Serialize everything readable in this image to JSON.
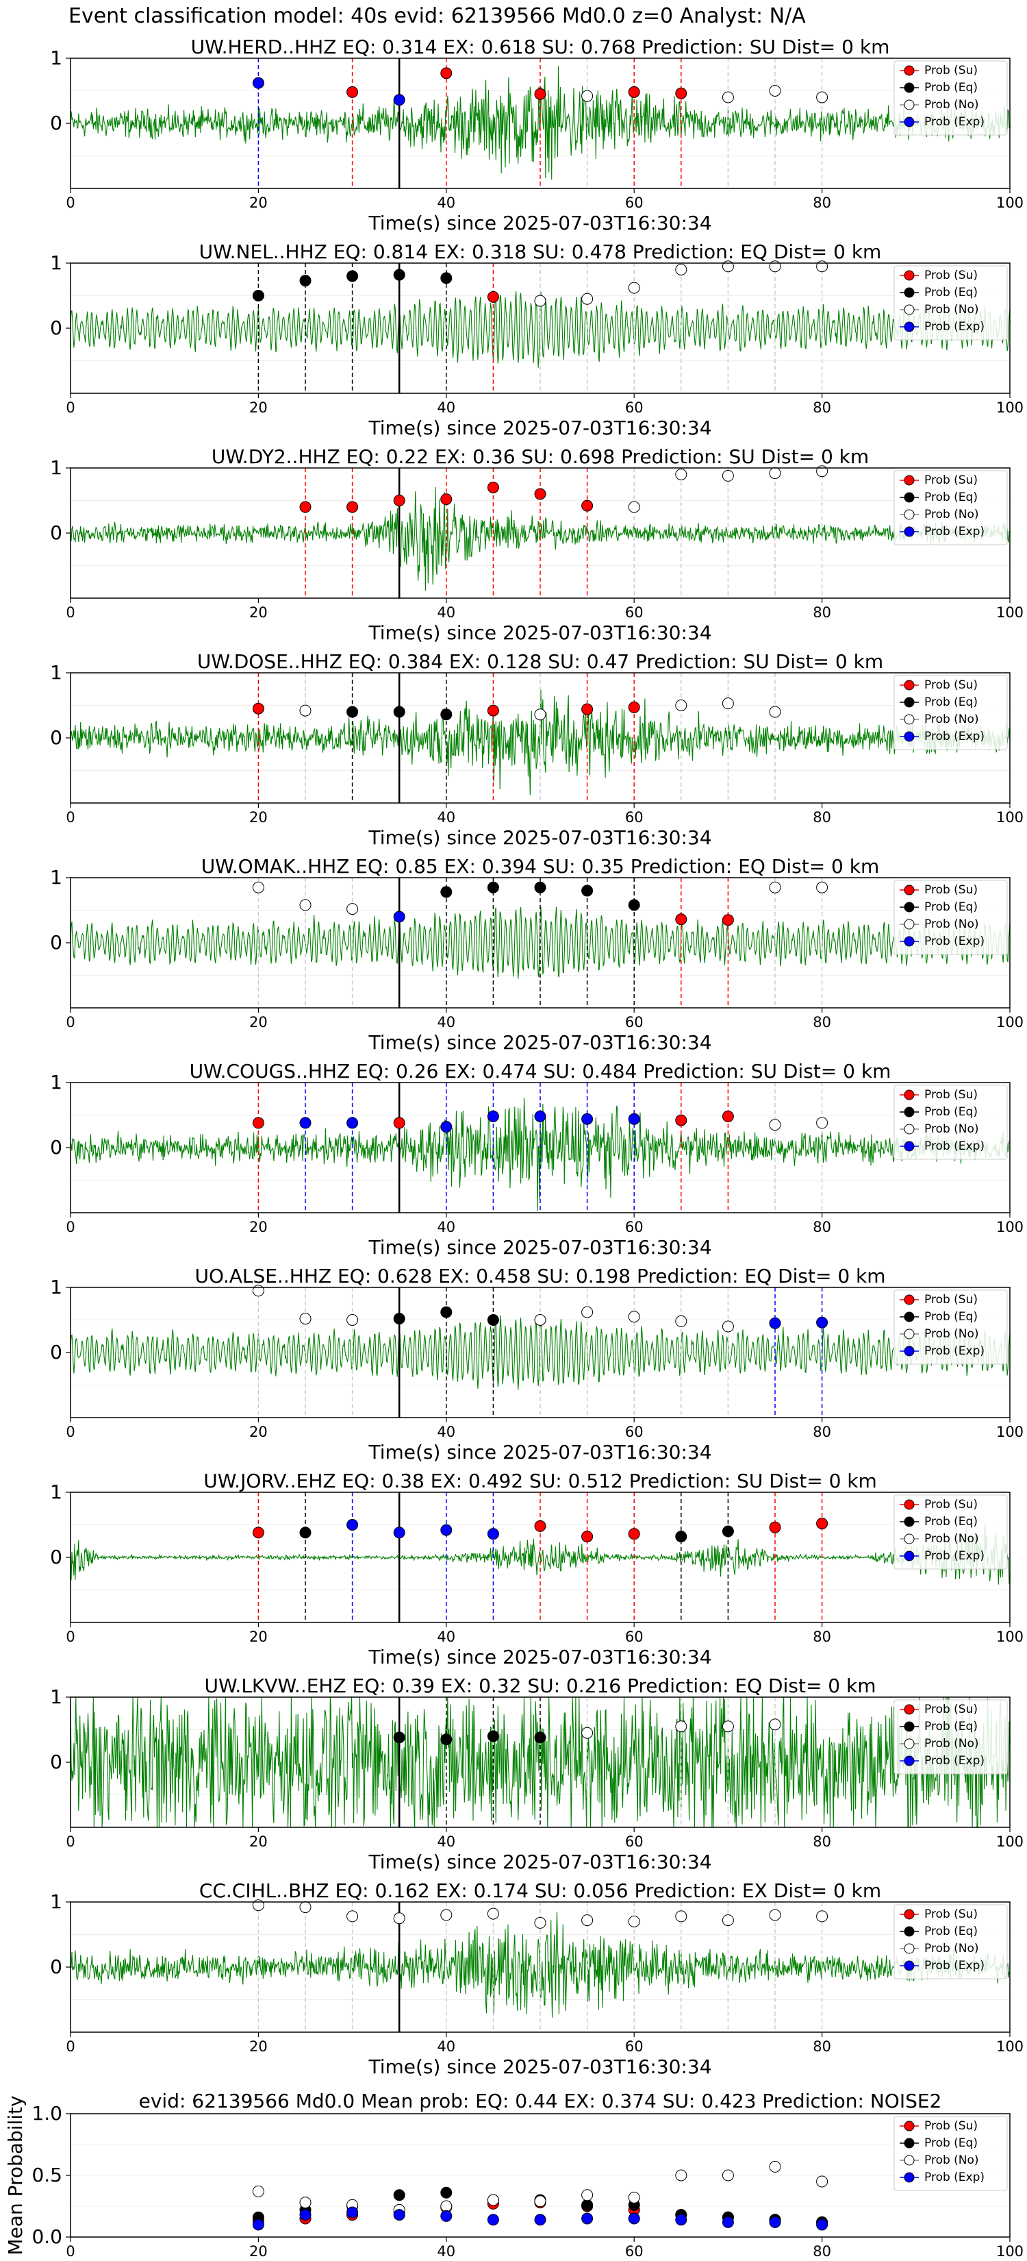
{
  "suptitle": "Event classification model: 40s evid: 62139566 Md0.0 z=0 Analyst: N/A",
  "colors": {
    "su": "#ff0000",
    "eq": "#000000",
    "no": "#ffffff",
    "exp": "#0000ff",
    "trace": "#008000"
  },
  "legend_labels": [
    "Prob (Su)",
    "Prob (Eq)",
    "Prob (No)",
    "Prob (Exp)"
  ],
  "xlabel": "Time(s) since 2025-07-03T16:30:34",
  "origin_time_s": 35,
  "chart_data": [
    {
      "type": "scatter",
      "title": "UW.HERD..HHZ   EQ: 0.314  EX: 0.618  SU: 0.768   Prediction: SU    Dist= 0 km",
      "xlim": [
        0,
        100
      ],
      "ylim": [
        -1,
        1
      ],
      "yticks": [
        0,
        1
      ],
      "xticks": [
        0,
        20,
        40,
        60,
        80,
        100
      ],
      "legend": "top-right",
      "trace": "noisy",
      "points": [
        [
          20,
          "exp",
          0.62
        ],
        [
          30,
          "su",
          0.48
        ],
        [
          35,
          "exp",
          0.36
        ],
        [
          40,
          "su",
          0.77
        ],
        [
          50,
          "su",
          0.45
        ],
        [
          55,
          "no",
          0.42
        ],
        [
          60,
          "su",
          0.48
        ],
        [
          65,
          "su",
          0.46
        ],
        [
          70,
          "no",
          0.4
        ],
        [
          75,
          "no",
          0.5
        ],
        [
          80,
          "no",
          0.4
        ]
      ]
    },
    {
      "type": "scatter",
      "title": "UW.NEL..HHZ   EQ: 0.814  EX: 0.318  SU: 0.478   Prediction: EQ    Dist= 0 km",
      "xlim": [
        0,
        100
      ],
      "ylim": [
        -1,
        1
      ],
      "yticks": [
        0,
        1
      ],
      "xticks": [
        0,
        20,
        40,
        60,
        80,
        100
      ],
      "legend": "top-right",
      "trace": "wavy",
      "points": [
        [
          20,
          "eq",
          0.5
        ],
        [
          25,
          "eq",
          0.73
        ],
        [
          30,
          "eq",
          0.8
        ],
        [
          35,
          "eq",
          0.82
        ],
        [
          40,
          "eq",
          0.77
        ],
        [
          45,
          "su",
          0.48
        ],
        [
          50,
          "no",
          0.42
        ],
        [
          55,
          "no",
          0.45
        ],
        [
          60,
          "no",
          0.62
        ],
        [
          65,
          "no",
          0.9
        ],
        [
          70,
          "no",
          0.95
        ],
        [
          75,
          "no",
          0.95
        ],
        [
          80,
          "no",
          0.95
        ]
      ]
    },
    {
      "type": "scatter",
      "title": "UW.DY2..HHZ   EQ: 0.22  EX: 0.36  SU: 0.698   Prediction: SU    Dist= 0 km",
      "xlim": [
        0,
        100
      ],
      "ylim": [
        -1,
        1
      ],
      "yticks": [
        0,
        1
      ],
      "xticks": [
        0,
        20,
        40,
        60,
        80,
        100
      ],
      "legend": "top-right",
      "trace": "burst",
      "points": [
        [
          25,
          "su",
          0.4
        ],
        [
          30,
          "su",
          0.4
        ],
        [
          35,
          "su",
          0.5
        ],
        [
          40,
          "su",
          0.52
        ],
        [
          45,
          "su",
          0.7
        ],
        [
          50,
          "su",
          0.6
        ],
        [
          55,
          "su",
          0.42
        ],
        [
          60,
          "no",
          0.4
        ],
        [
          65,
          "no",
          0.9
        ],
        [
          70,
          "no",
          0.88
        ],
        [
          75,
          "no",
          0.92
        ],
        [
          80,
          "no",
          0.95
        ]
      ]
    },
    {
      "type": "scatter",
      "title": "UW.DOSE..HHZ   EQ: 0.384  EX: 0.128  SU: 0.47   Prediction: SU    Dist= 0 km",
      "xlim": [
        0,
        100
      ],
      "ylim": [
        -1,
        1
      ],
      "yticks": [
        0,
        1
      ],
      "xticks": [
        0,
        20,
        40,
        60,
        80,
        100
      ],
      "legend": "top-right",
      "trace": "noisy",
      "points": [
        [
          20,
          "su",
          0.45
        ],
        [
          25,
          "no",
          0.42
        ],
        [
          30,
          "eq",
          0.4
        ],
        [
          35,
          "eq",
          0.4
        ],
        [
          40,
          "eq",
          0.36
        ],
        [
          45,
          "su",
          0.42
        ],
        [
          50,
          "no",
          0.36
        ],
        [
          55,
          "su",
          0.44
        ],
        [
          60,
          "su",
          0.47
        ],
        [
          65,
          "no",
          0.5
        ],
        [
          70,
          "no",
          0.53
        ],
        [
          75,
          "no",
          0.4
        ]
      ]
    },
    {
      "type": "scatter",
      "title": "UW.OMAK..HHZ   EQ: 0.85  EX: 0.394  SU: 0.35   Prediction: EQ    Dist= 0 km",
      "xlim": [
        0,
        100
      ],
      "ylim": [
        -1,
        1
      ],
      "yticks": [
        0,
        1
      ],
      "xticks": [
        0,
        20,
        40,
        60,
        80,
        100
      ],
      "legend": "top-right",
      "trace": "wavy",
      "points": [
        [
          20,
          "no",
          0.85
        ],
        [
          25,
          "no",
          0.58
        ],
        [
          30,
          "no",
          0.52
        ],
        [
          35,
          "exp",
          0.4
        ],
        [
          40,
          "eq",
          0.78
        ],
        [
          45,
          "eq",
          0.85
        ],
        [
          50,
          "eq",
          0.85
        ],
        [
          55,
          "eq",
          0.8
        ],
        [
          60,
          "eq",
          0.58
        ],
        [
          65,
          "su",
          0.36
        ],
        [
          70,
          "su",
          0.35
        ],
        [
          75,
          "no",
          0.85
        ],
        [
          80,
          "no",
          0.85
        ]
      ]
    },
    {
      "type": "scatter",
      "title": "UW.COUGS..HHZ   EQ: 0.26  EX: 0.474  SU: 0.484   Prediction: SU    Dist= 0 km",
      "xlim": [
        0,
        100
      ],
      "ylim": [
        -1,
        1
      ],
      "yticks": [
        0,
        1
      ],
      "xticks": [
        0,
        20,
        40,
        60,
        80,
        100
      ],
      "legend": "top-right",
      "trace": "noisy",
      "points": [
        [
          20,
          "su",
          0.38
        ],
        [
          25,
          "exp",
          0.38
        ],
        [
          30,
          "exp",
          0.38
        ],
        [
          35,
          "su",
          0.38
        ],
        [
          40,
          "exp",
          0.32
        ],
        [
          45,
          "exp",
          0.48
        ],
        [
          50,
          "exp",
          0.48
        ],
        [
          55,
          "exp",
          0.44
        ],
        [
          60,
          "exp",
          0.44
        ],
        [
          65,
          "su",
          0.42
        ],
        [
          70,
          "su",
          0.48
        ],
        [
          75,
          "no",
          0.35
        ],
        [
          80,
          "no",
          0.38
        ]
      ]
    },
    {
      "type": "scatter",
      "title": "UO.ALSE..HHZ   EQ: 0.628  EX: 0.458  SU: 0.198   Prediction: EQ    Dist= 0 km",
      "xlim": [
        0,
        100
      ],
      "ylim": [
        -1,
        1
      ],
      "yticks": [
        0,
        1
      ],
      "xticks": [
        0,
        20,
        40,
        60,
        80,
        100
      ],
      "legend": "top-right",
      "trace": "wavy",
      "points": [
        [
          20,
          "no",
          0.95
        ],
        [
          25,
          "no",
          0.52
        ],
        [
          30,
          "no",
          0.5
        ],
        [
          35,
          "eq",
          0.52
        ],
        [
          40,
          "eq",
          0.62
        ],
        [
          45,
          "eq",
          0.5
        ],
        [
          50,
          "no",
          0.5
        ],
        [
          55,
          "no",
          0.62
        ],
        [
          60,
          "no",
          0.55
        ],
        [
          65,
          "no",
          0.48
        ],
        [
          70,
          "no",
          0.4
        ],
        [
          75,
          "exp",
          0.45
        ],
        [
          80,
          "exp",
          0.46
        ]
      ]
    },
    {
      "type": "scatter",
      "title": "UW.JORV..EHZ   EQ: 0.38  EX: 0.492  SU: 0.512   Prediction: SU    Dist= 0 km",
      "xlim": [
        0,
        100
      ],
      "ylim": [
        -1,
        1
      ],
      "yticks": [
        0,
        1
      ],
      "xticks": [
        0,
        20,
        40,
        60,
        80,
        100
      ],
      "legend": "top-right",
      "trace": "quiet",
      "points": [
        [
          20,
          "su",
          0.38
        ],
        [
          25,
          "eq",
          0.38
        ],
        [
          30,
          "exp",
          0.5
        ],
        [
          35,
          "exp",
          0.38
        ],
        [
          40,
          "exp",
          0.42
        ],
        [
          45,
          "exp",
          0.36
        ],
        [
          50,
          "su",
          0.48
        ],
        [
          55,
          "su",
          0.32
        ],
        [
          60,
          "su",
          0.36
        ],
        [
          65,
          "eq",
          0.32
        ],
        [
          70,
          "eq",
          0.4
        ],
        [
          75,
          "su",
          0.46
        ],
        [
          80,
          "su",
          0.52
        ]
      ]
    },
    {
      "type": "scatter",
      "title": "UW.LKVW..EHZ   EQ: 0.39  EX: 0.32  SU: 0.216   Prediction: EQ    Dist= 0 km",
      "xlim": [
        0,
        100
      ],
      "ylim": [
        -1,
        1
      ],
      "yticks": [
        0,
        1
      ],
      "xticks": [
        0,
        20,
        40,
        60,
        80,
        100
      ],
      "legend": "top-right",
      "trace": "saturated",
      "points": [
        [
          35,
          "eq",
          0.38
        ],
        [
          40,
          "eq",
          0.35
        ],
        [
          45,
          "eq",
          0.4
        ],
        [
          50,
          "eq",
          0.38
        ],
        [
          55,
          "no",
          0.45
        ],
        [
          65,
          "no",
          0.55
        ],
        [
          70,
          "no",
          0.55
        ],
        [
          75,
          "no",
          0.58
        ]
      ]
    },
    {
      "type": "scatter",
      "title": "CC.CIHL..BHZ   EQ: 0.162  EX: 0.174  SU: 0.056   Prediction: EX    Dist= 0 km",
      "xlim": [
        0,
        100
      ],
      "ylim": [
        -1,
        1
      ],
      "yticks": [
        0,
        1
      ],
      "xticks": [
        0,
        20,
        40,
        60,
        80,
        100
      ],
      "legend": "top-right",
      "trace": "noisy",
      "points": [
        [
          20,
          "no",
          0.95
        ],
        [
          25,
          "no",
          0.92
        ],
        [
          30,
          "no",
          0.78
        ],
        [
          35,
          "no",
          0.75
        ],
        [
          40,
          "no",
          0.8
        ],
        [
          45,
          "no",
          0.82
        ],
        [
          50,
          "no",
          0.68
        ],
        [
          55,
          "no",
          0.72
        ],
        [
          60,
          "no",
          0.7
        ],
        [
          65,
          "no",
          0.78
        ],
        [
          70,
          "no",
          0.72
        ],
        [
          75,
          "no",
          0.8
        ],
        [
          80,
          "no",
          0.78
        ]
      ]
    },
    {
      "type": "scatter",
      "title": "evid: 62139566  Md0.0   Mean prob:   EQ: 0.44  EX: 0.374  SU: 0.423   Prediction: NOISE2",
      "ylabel": "Mean Probability",
      "xlim": [
        0,
        100
      ],
      "ylim": [
        0,
        1
      ],
      "yticks": [
        0.0,
        0.5,
        1.0
      ],
      "xticks": [
        0,
        20,
        40,
        60,
        80,
        100
      ],
      "legend": "top-right",
      "series": [
        {
          "kind": "su",
          "x": [
            20,
            25,
            30,
            35,
            40,
            45,
            50,
            55,
            60,
            65,
            70,
            75,
            80
          ],
          "y": [
            0.13,
            0.15,
            0.18,
            0.2,
            0.24,
            0.27,
            0.28,
            0.25,
            0.22,
            0.18,
            0.16,
            0.14,
            0.12
          ]
        },
        {
          "kind": "eq",
          "x": [
            20,
            25,
            30,
            35,
            40,
            45,
            50,
            55,
            60,
            65,
            70,
            75,
            80
          ],
          "y": [
            0.16,
            0.22,
            0.25,
            0.34,
            0.36,
            0.3,
            0.3,
            0.26,
            0.26,
            0.18,
            0.16,
            0.14,
            0.12
          ]
        },
        {
          "kind": "no",
          "x": [
            20,
            25,
            30,
            35,
            40,
            45,
            50,
            55,
            60,
            65,
            70,
            75,
            80
          ],
          "y": [
            0.37,
            0.28,
            0.26,
            0.22,
            0.25,
            0.3,
            0.29,
            0.34,
            0.32,
            0.5,
            0.5,
            0.57,
            0.45
          ]
        },
        {
          "kind": "exp",
          "x": [
            20,
            25,
            30,
            35,
            40,
            45,
            50,
            55,
            60,
            65,
            70,
            75,
            80
          ],
          "y": [
            0.1,
            0.18,
            0.2,
            0.18,
            0.17,
            0.14,
            0.14,
            0.15,
            0.15,
            0.14,
            0.12,
            0.12,
            0.1
          ]
        }
      ]
    }
  ]
}
